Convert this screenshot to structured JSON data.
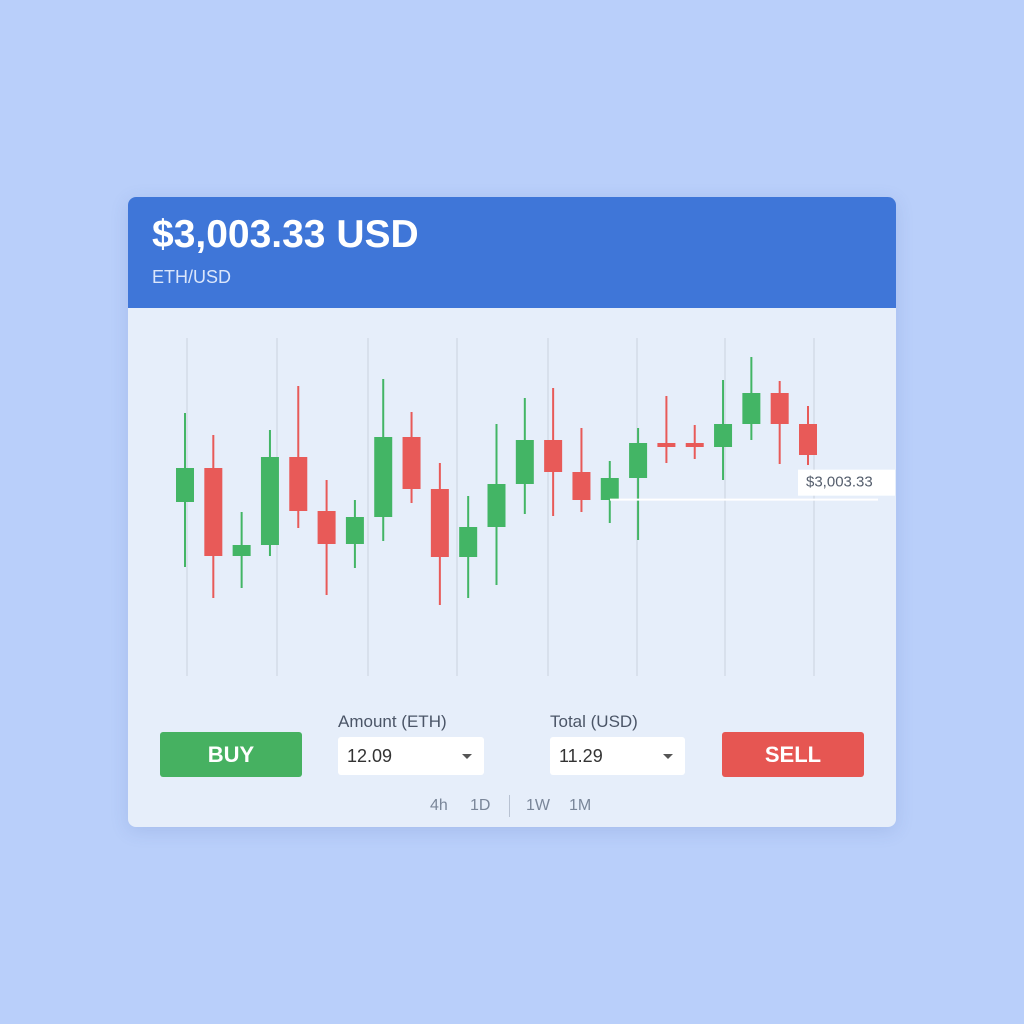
{
  "header": {
    "price": "$3,003.33 USD",
    "pair": "ETH/USD"
  },
  "chart_data": {
    "type": "candlestick",
    "open": [
      3001,
      3035,
      2947,
      2958,
      3046,
      2992,
      2959,
      2986,
      3066,
      3014,
      2946,
      2976,
      3019,
      3063,
      3031,
      3003,
      3025,
      3060,
      3060,
      3056,
      3079,
      3110,
      3079
    ],
    "close": [
      3035,
      2947,
      2958,
      3046,
      2992,
      2959,
      2986,
      3066,
      3014,
      2946,
      2976,
      3019,
      3063,
      3031,
      3003,
      3025,
      3060,
      3056,
      3056,
      3079,
      3110,
      3079,
      3048
    ],
    "high": [
      3090,
      3068,
      2991,
      3073,
      3117,
      3023,
      3003,
      3124,
      3091,
      3040,
      3007,
      3079,
      3105,
      3115,
      3075,
      3042,
      3075,
      3107,
      3078,
      3123,
      3146,
      3122,
      3097
    ],
    "low": [
      2936,
      2905,
      2915,
      2947,
      2975,
      2908,
      2935,
      2962,
      3000,
      2898,
      2905,
      2918,
      2989,
      2987,
      2991,
      2980,
      2963,
      3040,
      3044,
      3023,
      3063,
      3039,
      3038
    ],
    "up_color": "#43b565",
    "down_color": "#e85a58",
    "ylim": [
      2830,
      3165
    ],
    "price_line": {
      "value": 3003.33,
      "label": "$3,003.33"
    }
  },
  "trade": {
    "buy": "BUY",
    "sell": "SELL",
    "amount": {
      "label": "Amount (ETH)",
      "value": 12.09
    },
    "total": {
      "label": "Total (USD)",
      "value": 11.29
    }
  },
  "timeframes": [
    "4h",
    "1D",
    "1W",
    "1M"
  ]
}
